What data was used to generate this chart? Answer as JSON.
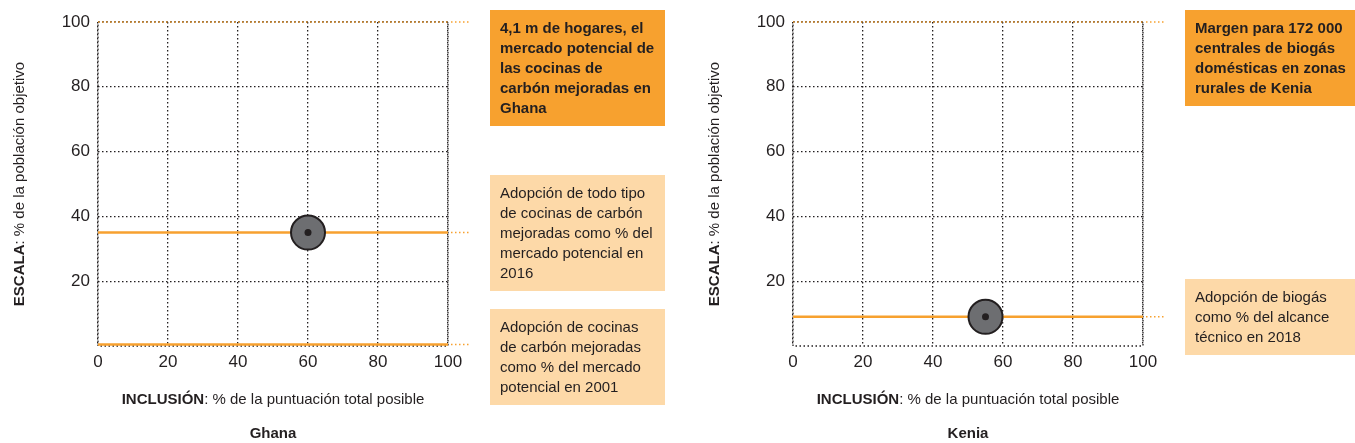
{
  "chart_data": [
    {
      "type": "scatter",
      "title": "Ghana",
      "xlabel": "INCLUSIÓN: % de la puntuación total posible",
      "ylabel": "ESCALA: % de la población objetivo",
      "xlim": [
        0,
        100
      ],
      "ylim": [
        0,
        100
      ],
      "xticks": [
        0,
        20,
        40,
        60,
        80,
        100
      ],
      "yticks": [
        20,
        40,
        60,
        80,
        100
      ],
      "grid": true,
      "marker": "circle",
      "series": [
        {
          "x": [
            60
          ],
          "values": [
            35
          ],
          "color": "#6d6e71"
        }
      ],
      "ref_lines": [
        {
          "axis": "y",
          "value": 100,
          "label": "4,1 m de hogares, el mercado potencial de las cocinas de carbón mejoradas en Ghana",
          "color": "#f7a12f",
          "line_style": "dotted"
        },
        {
          "axis": "y",
          "value": 35,
          "label": "Adopción de todo tipo de cocinas de carbón mejoradas como % del mercado potencial en 2016",
          "color": "#f7a12f",
          "line_style": "solid"
        },
        {
          "axis": "y",
          "value": 0.5,
          "label": "Adopción de cocinas de carbón mejoradas como % del mercado potencial en 2001",
          "color": "#f7a12f",
          "line_style": "solid"
        }
      ]
    },
    {
      "type": "scatter",
      "title": "Kenia",
      "xlabel": "INCLUSIÓN: % de la puntuación total posible",
      "ylabel": "ESCALA: % de la población objetivo",
      "xlim": [
        0,
        100
      ],
      "ylim": [
        0,
        100
      ],
      "xticks": [
        0,
        20,
        40,
        60,
        80,
        100
      ],
      "yticks": [
        20,
        40,
        60,
        80,
        100
      ],
      "grid": true,
      "marker": "circle",
      "series": [
        {
          "x": [
            55
          ],
          "values": [
            9
          ],
          "color": "#6d6e71"
        }
      ],
      "ref_lines": [
        {
          "axis": "y",
          "value": 100,
          "label": "Margen para 172 000 centrales de biogás domésticas en zonas rurales de Kenia",
          "color": "#f7a12f",
          "line_style": "dotted"
        },
        {
          "axis": "y",
          "value": 9,
          "label": "Adopción de biogás como % del alcance técnico en 2018",
          "color": "#f7a12f",
          "line_style": "solid"
        }
      ]
    }
  ]
}
